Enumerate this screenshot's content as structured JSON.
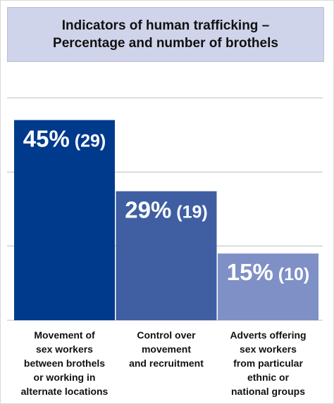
{
  "title": {
    "line1": "Indicators of human trafficking –",
    "line2": "Percentage and number of brothels"
  },
  "colors": {
    "title_bg": "#cfd4ea",
    "bar_colors": [
      "#003a8c",
      "#3f5fa2",
      "#7e90c6"
    ],
    "grid": "#bfbfbf"
  },
  "chart_data": {
    "type": "bar",
    "title": "Indicators of human trafficking – Percentage and number of brothels",
    "categories": [
      [
        "Movement of",
        "sex workers",
        "between brothels",
        "or working in",
        "alternate locations"
      ],
      [
        "Control over",
        "movement",
        "and recruitment"
      ],
      [
        "Adverts offering",
        "sex workers",
        "from particular",
        "ethnic or",
        "national groups"
      ]
    ],
    "values": [
      45,
      29,
      15
    ],
    "counts": [
      29,
      19,
      10
    ],
    "value_labels": [
      "45%",
      "29%",
      "15%"
    ],
    "count_labels": [
      "(29)",
      "(19)",
      "(10)"
    ],
    "ylim": [
      0,
      50
    ],
    "grid": true,
    "yticks": [
      0,
      16.7,
      33.3,
      50
    ],
    "xlabel": "",
    "ylabel": ""
  }
}
